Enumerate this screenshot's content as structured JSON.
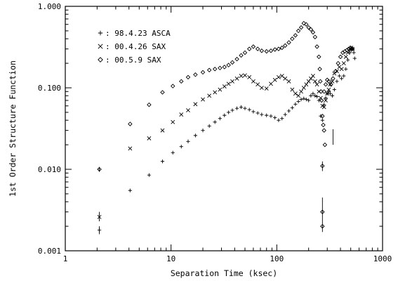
{
  "chart_data": {
    "type": "scatter",
    "xlabel": "Separation Time (ksec)",
    "ylabel": "1st Order Structure Function",
    "xscale": "log",
    "yscale": "log",
    "xlim": [
      1,
      1000
    ],
    "ylim": [
      0.001,
      1.0
    ],
    "xticks": [
      {
        "value": 1,
        "label": "1"
      },
      {
        "value": 10,
        "label": "10"
      },
      {
        "value": 100,
        "label": "100"
      },
      {
        "value": 1000,
        "label": "1000"
      }
    ],
    "yticks": [
      {
        "value": 0.001,
        "label": "0.001"
      },
      {
        "value": 0.01,
        "label": "0.010"
      },
      {
        "value": 0.1,
        "label": "0.100"
      },
      {
        "value": 1,
        "label": "1.000"
      }
    ],
    "legend_position": "top-left",
    "series": [
      {
        "name": ": 98.4.23 ASCA",
        "marker": "plus",
        "points": [
          [
            2.1,
            0.0018
          ],
          [
            4.1,
            0.0055
          ],
          [
            6.2,
            0.0085
          ],
          [
            8.3,
            0.0125
          ],
          [
            10.4,
            0.016
          ],
          [
            12.5,
            0.019
          ],
          [
            14.5,
            0.022
          ],
          [
            17,
            0.026
          ],
          [
            20,
            0.03
          ],
          [
            23,
            0.034
          ],
          [
            26,
            0.038
          ],
          [
            29,
            0.042
          ],
          [
            32,
            0.046
          ],
          [
            35,
            0.05
          ],
          [
            38,
            0.053
          ],
          [
            42,
            0.056
          ],
          [
            46,
            0.058
          ],
          [
            50,
            0.056
          ],
          [
            55,
            0.054
          ],
          [
            60,
            0.051
          ],
          [
            66,
            0.049
          ],
          [
            72,
            0.047
          ],
          [
            80,
            0.046
          ],
          [
            88,
            0.045
          ],
          [
            96,
            0.043
          ],
          [
            104,
            0.04
          ],
          [
            112,
            0.042
          ],
          [
            120,
            0.047
          ],
          [
            130,
            0.052
          ],
          [
            140,
            0.057
          ],
          [
            150,
            0.063
          ],
          [
            160,
            0.068
          ],
          [
            170,
            0.072
          ],
          [
            180,
            0.074
          ],
          [
            190,
            0.072
          ],
          [
            200,
            0.07
          ],
          [
            210,
            0.08
          ],
          [
            220,
            0.085
          ],
          [
            230,
            0.08
          ],
          [
            240,
            0.078
          ],
          [
            250,
            0.07
          ],
          [
            260,
            0.045
          ],
          [
            270,
            0.04
          ],
          [
            280,
            0.062
          ],
          [
            290,
            0.075
          ],
          [
            300,
            0.085
          ],
          [
            310,
            0.09
          ],
          [
            320,
            0.085
          ],
          [
            335,
            0.08
          ],
          [
            350,
            0.095
          ],
          [
            370,
            0.12
          ],
          [
            390,
            0.14
          ],
          [
            410,
            0.13
          ],
          [
            430,
            0.14
          ],
          [
            450,
            0.17
          ],
          [
            470,
            0.22
          ],
          [
            490,
            0.27
          ],
          [
            505,
            0.29
          ],
          [
            520,
            0.3
          ],
          [
            535,
            0.27
          ],
          [
            545,
            0.23
          ]
        ],
        "errorbars": [
          [
            2.1,
            0.0016,
            0.002
          ],
          [
            270,
            0.0017,
            0.0045
          ],
          [
            340,
            0.02,
            0.031
          ]
        ]
      },
      {
        "name": ": 00.4.26 SAX",
        "marker": "x",
        "points": [
          [
            2.1,
            0.0026
          ],
          [
            4.1,
            0.018
          ],
          [
            6.2,
            0.024
          ],
          [
            8.3,
            0.03
          ],
          [
            10.4,
            0.038
          ],
          [
            12.5,
            0.047
          ],
          [
            14.5,
            0.053
          ],
          [
            17,
            0.063
          ],
          [
            20,
            0.072
          ],
          [
            23,
            0.08
          ],
          [
            26,
            0.088
          ],
          [
            29,
            0.095
          ],
          [
            32,
            0.104
          ],
          [
            35,
            0.112
          ],
          [
            38,
            0.12
          ],
          [
            42,
            0.13
          ],
          [
            46,
            0.14
          ],
          [
            50,
            0.142
          ],
          [
            55,
            0.135
          ],
          [
            60,
            0.12
          ],
          [
            66,
            0.11
          ],
          [
            72,
            0.1
          ],
          [
            80,
            0.098
          ],
          [
            88,
            0.112
          ],
          [
            96,
            0.125
          ],
          [
            104,
            0.135
          ],
          [
            112,
            0.14
          ],
          [
            120,
            0.13
          ],
          [
            130,
            0.12
          ],
          [
            140,
            0.095
          ],
          [
            150,
            0.085
          ],
          [
            160,
            0.08
          ],
          [
            170,
            0.09
          ],
          [
            180,
            0.1
          ],
          [
            190,
            0.11
          ],
          [
            200,
            0.12
          ],
          [
            210,
            0.13
          ],
          [
            220,
            0.14
          ],
          [
            230,
            0.12
          ],
          [
            240,
            0.11
          ],
          [
            250,
            0.09
          ],
          [
            260,
            0.075
          ],
          [
            270,
            0.06
          ],
          [
            280,
            0.058
          ],
          [
            290,
            0.07
          ],
          [
            300,
            0.085
          ],
          [
            310,
            0.095
          ],
          [
            320,
            0.11
          ],
          [
            335,
            0.12
          ],
          [
            350,
            0.15
          ],
          [
            370,
            0.16
          ],
          [
            390,
            0.18
          ],
          [
            410,
            0.17
          ],
          [
            430,
            0.2
          ],
          [
            450,
            0.24
          ],
          [
            470,
            0.27
          ],
          [
            490,
            0.3
          ],
          [
            505,
            0.31
          ],
          [
            520,
            0.3
          ]
        ],
        "errorbars": [
          [
            2.1,
            0.0023,
            0.003
          ]
        ]
      },
      {
        "name": ": 00.5.9 SAX",
        "marker": "diamond",
        "points": [
          [
            2.1,
            0.01
          ],
          [
            4.1,
            0.036
          ],
          [
            6.2,
            0.062
          ],
          [
            8.3,
            0.088
          ],
          [
            10.4,
            0.105
          ],
          [
            12.5,
            0.12
          ],
          [
            14.5,
            0.135
          ],
          [
            17,
            0.145
          ],
          [
            20,
            0.155
          ],
          [
            23,
            0.165
          ],
          [
            26,
            0.17
          ],
          [
            29,
            0.175
          ],
          [
            32,
            0.18
          ],
          [
            35,
            0.19
          ],
          [
            38,
            0.205
          ],
          [
            42,
            0.225
          ],
          [
            46,
            0.25
          ],
          [
            50,
            0.27
          ],
          [
            55,
            0.3
          ],
          [
            60,
            0.32
          ],
          [
            66,
            0.3
          ],
          [
            72,
            0.285
          ],
          [
            80,
            0.28
          ],
          [
            88,
            0.285
          ],
          [
            96,
            0.295
          ],
          [
            104,
            0.3
          ],
          [
            112,
            0.31
          ],
          [
            120,
            0.33
          ],
          [
            130,
            0.36
          ],
          [
            140,
            0.4
          ],
          [
            150,
            0.44
          ],
          [
            160,
            0.5
          ],
          [
            170,
            0.55
          ],
          [
            180,
            0.62
          ],
          [
            190,
            0.6
          ],
          [
            200,
            0.55
          ],
          [
            210,
            0.52
          ],
          [
            220,
            0.48
          ],
          [
            230,
            0.42
          ],
          [
            240,
            0.32
          ],
          [
            250,
            0.24
          ],
          [
            255,
            0.17
          ],
          [
            258,
            0.12
          ],
          [
            262,
            0.09
          ],
          [
            265,
            0.07
          ],
          [
            270,
            0.045
          ],
          [
            275,
            0.035
          ],
          [
            280,
            0.03
          ],
          [
            285,
            0.02
          ],
          [
            270,
            0.011
          ],
          [
            270,
            0.003
          ],
          [
            270,
            0.002
          ],
          [
            280,
            0.09
          ],
          [
            290,
            0.11
          ],
          [
            300,
            0.125
          ],
          [
            310,
            0.12
          ],
          [
            325,
            0.11
          ],
          [
            340,
            0.13
          ],
          [
            360,
            0.16
          ],
          [
            380,
            0.2
          ],
          [
            400,
            0.24
          ],
          [
            420,
            0.27
          ],
          [
            440,
            0.28
          ],
          [
            460,
            0.29
          ],
          [
            480,
            0.3
          ],
          [
            500,
            0.31
          ],
          [
            520,
            0.3
          ]
        ],
        "errorbars": [
          [
            2.1,
            0.0093,
            0.0107
          ],
          [
            270,
            0.0095,
            0.0125
          ]
        ]
      }
    ]
  }
}
